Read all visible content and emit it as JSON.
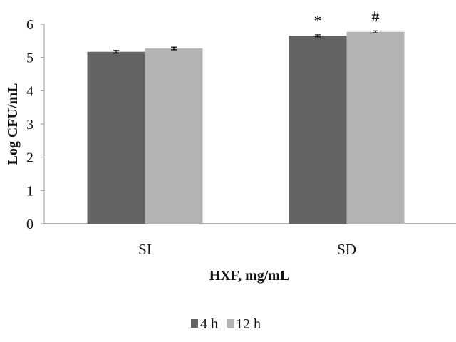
{
  "chart_data": {
    "type": "bar",
    "xlabel": "HXF, mg/mL",
    "ylabel": "Log CFU/mL",
    "ylim": [
      0,
      6
    ],
    "yticks": [
      "0",
      "1",
      "2",
      "3",
      "4",
      "5",
      "6"
    ],
    "categories": [
      "SI",
      "SD"
    ],
    "series": [
      {
        "name": "4 h",
        "values": [
          5.17,
          5.65
        ],
        "errors": [
          0.04,
          0.03
        ],
        "color": "#636363"
      },
      {
        "name": "12 h",
        "values": [
          5.27,
          5.77
        ],
        "errors": [
          0.04,
          0.03
        ],
        "color": "#b3b3b3"
      }
    ],
    "annotations": [
      {
        "category": "SD",
        "series": "4 h",
        "text": "*"
      },
      {
        "category": "SD",
        "series": "12 h",
        "text": "#"
      }
    ],
    "grid": false,
    "legend": "bottom"
  }
}
